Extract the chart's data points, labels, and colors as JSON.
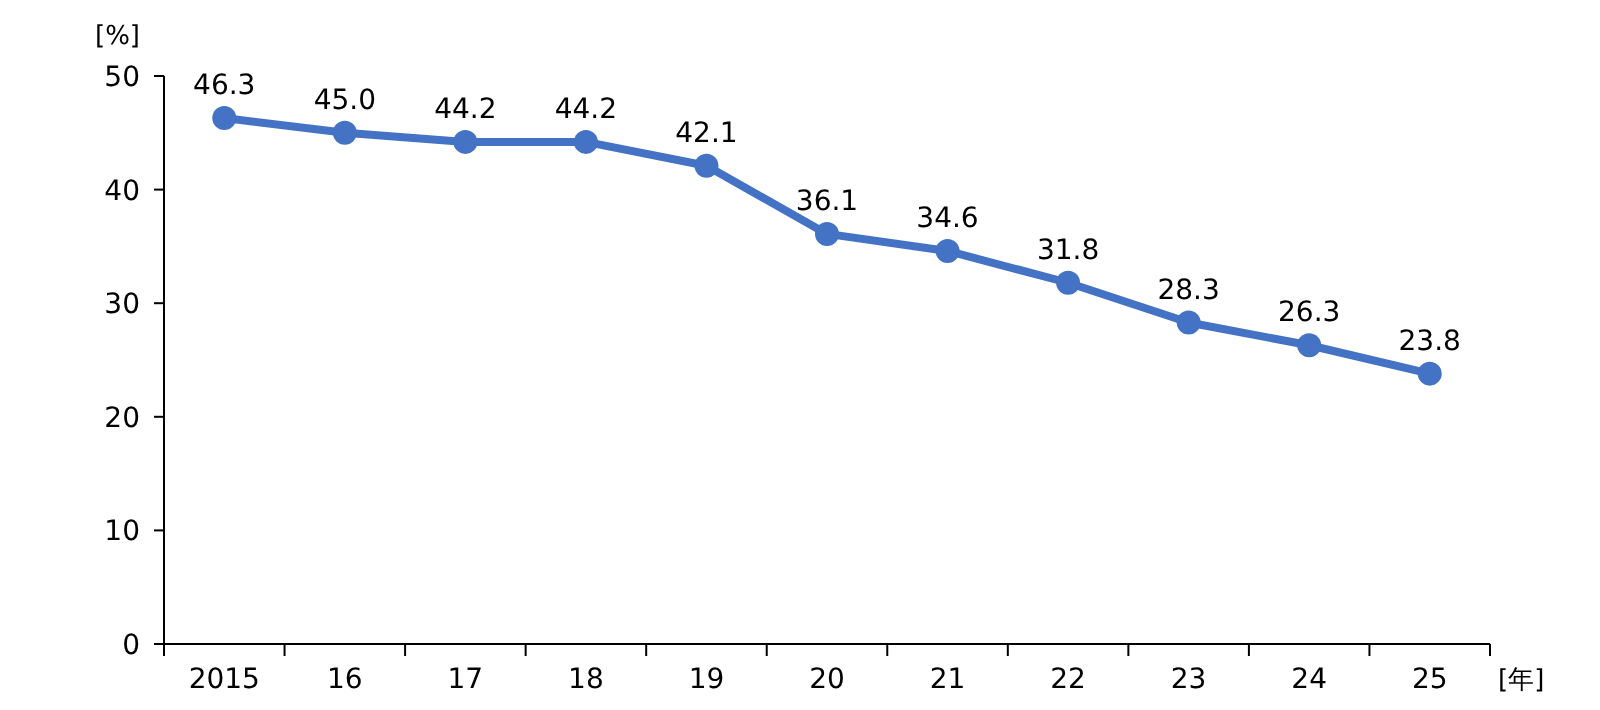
{
  "chart_data": {
    "type": "line",
    "ylabel": "[%]",
    "xlabel": "[年]",
    "categories": [
      "2015",
      "16",
      "17",
      "18",
      "19",
      "20",
      "21",
      "22",
      "23",
      "24",
      "25"
    ],
    "series": [
      {
        "color": "#4472c4",
        "values": [
          46.3,
          45.0,
          44.2,
          44.2,
          42.1,
          36.1,
          34.6,
          31.8,
          28.3,
          26.3,
          23.8
        ],
        "value_labels": [
          "46.3",
          "45.0",
          "44.2",
          "44.2",
          "42.1",
          "36.1",
          "34.6",
          "31.8",
          "28.3",
          "26.3",
          "23.8"
        ]
      }
    ],
    "ylim": [
      0,
      50
    ],
    "yticks": [
      0,
      10,
      20,
      30,
      40,
      50
    ],
    "marker": "circle"
  }
}
